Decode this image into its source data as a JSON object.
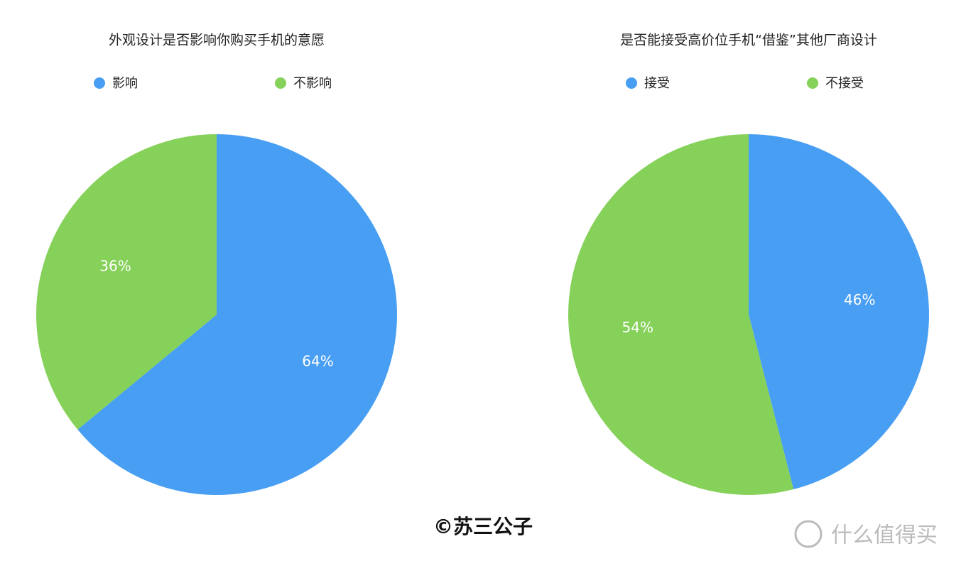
{
  "chart_data": [
    {
      "type": "pie",
      "title": "外观设计是否影响你购买手机的意愿",
      "categories": [
        "影响",
        "不影响"
      ],
      "values": [
        64,
        36
      ],
      "value_labels": [
        "64%",
        "36%"
      ],
      "colors": [
        "#479ef2",
        "#86d15a"
      ],
      "legend": "top"
    },
    {
      "type": "pie",
      "title": "是否能接受高价位手机“借鉴”其他厂商设计",
      "categories": [
        "接受",
        "不接受"
      ],
      "values": [
        46,
        54
      ],
      "value_labels": [
        "46%",
        "54%"
      ],
      "colors": [
        "#479ef2",
        "#86d15a"
      ],
      "legend": "top"
    }
  ],
  "watermark": "©苏三公子",
  "logo_text": "什么值得买"
}
